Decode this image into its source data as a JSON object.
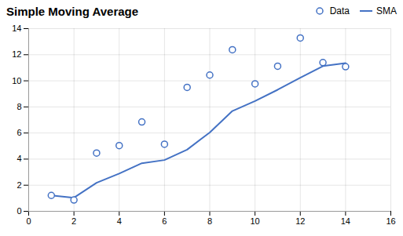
{
  "chart_data": {
    "type": "line",
    "title": "Simple Moving Average",
    "x": [
      1,
      2,
      3,
      4,
      5,
      6,
      7,
      8,
      9,
      10,
      11,
      12,
      13,
      14
    ],
    "series": [
      {
        "name": "Data",
        "type": "scatter",
        "marker": "circle",
        "color": "#4472C4",
        "values": [
          1.21706,
          0.86626,
          4.46362,
          5.03517,
          6.84482,
          5.14437,
          9.4979,
          10.43939,
          12.38412,
          9.76896,
          11.11949,
          13.28069,
          11.39418,
          11.07953
        ]
      },
      {
        "name": "SMA",
        "type": "line",
        "color": "#4472C4",
        "values": [
          1.21706,
          1.04166,
          2.18231,
          2.89553,
          3.68539,
          3.92855,
          4.72417,
          6.04165,
          7.68706,
          8.44496,
          9.31415,
          10.23356,
          11.12639,
          11.35234
        ]
      }
    ],
    "xlim": [
      0,
      16
    ],
    "ylim": [
      0,
      14
    ],
    "xticks": [
      0,
      2,
      4,
      6,
      8,
      10,
      12,
      14,
      16
    ],
    "yticks": [
      0,
      2,
      4,
      6,
      8,
      10,
      12,
      14
    ],
    "grid": true,
    "legend": "upper right"
  }
}
